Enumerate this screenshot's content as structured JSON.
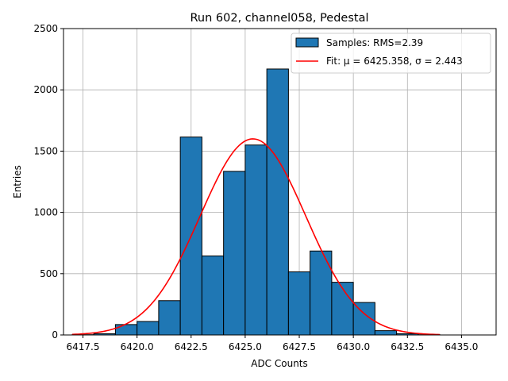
{
  "chart_data": {
    "type": "bar",
    "title": "Run 602, channel058, Pedestal",
    "xlabel": "ADC Counts",
    "ylabel": "Entries",
    "xlim": [
      6416.6,
      6436.6
    ],
    "ylim": [
      0,
      2500
    ],
    "xticks": [
      6417.5,
      6420.0,
      6422.5,
      6425.0,
      6427.5,
      6430.0,
      6432.5,
      6435.0
    ],
    "xtick_labels": [
      "6417.5",
      "6420.0",
      "6422.5",
      "6425.0",
      "6427.5",
      "6430.0",
      "6432.5",
      "6435.0"
    ],
    "yticks": [
      0,
      500,
      1000,
      1500,
      2000,
      2500
    ],
    "ytick_labels": [
      "0",
      "500",
      "1000",
      "1500",
      "2000",
      "2500"
    ],
    "grid": true,
    "legend_position": "top-right",
    "bar_color": "#1f77b4",
    "fit_color": "#ff0000",
    "histogram": {
      "name": "Samples: RMS=2.39",
      "bin_edges": [
        6417,
        6418,
        6419,
        6420,
        6421,
        6422,
        6423,
        6424,
        6425,
        6426,
        6427,
        6428,
        6429,
        6430,
        6431,
        6432,
        6433,
        6434,
        6435,
        6436
      ],
      "counts": [
        2,
        10,
        85,
        110,
        280,
        1615,
        645,
        1335,
        1550,
        2170,
        515,
        685,
        430,
        265,
        35,
        10,
        2,
        0,
        0
      ]
    },
    "fit": {
      "name": "Fit: μ = 6425.358, σ = 2.443",
      "mu_label": "μ",
      "sigma_label": "σ",
      "mu": 6425.358,
      "sigma": 2.443,
      "amplitude": 1600,
      "x_range": [
        6417,
        6434
      ]
    }
  }
}
